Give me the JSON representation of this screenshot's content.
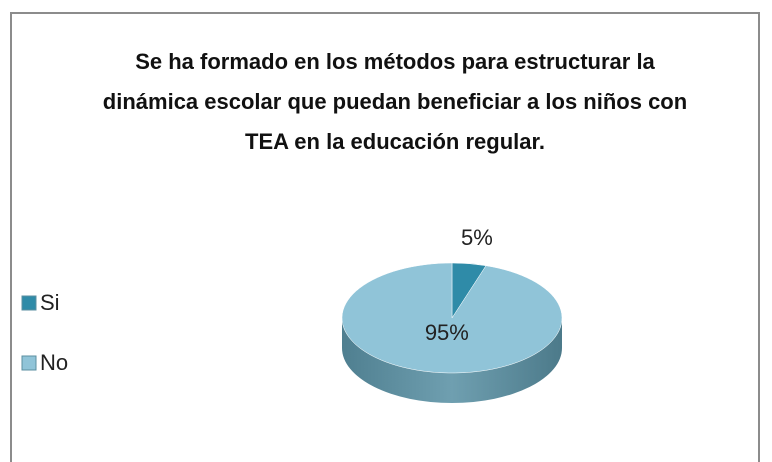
{
  "chart_data": {
    "type": "pie",
    "title": "Se ha formado en los métodos para estructurar la dinámica escolar que puedan beneficiar a los niños con TEA en la educación regular.",
    "categories": [
      "Si",
      "No"
    ],
    "values": [
      5,
      95
    ],
    "value_labels": [
      "5%",
      "95%"
    ],
    "colors": [
      "#2f8ba8",
      "#90c4d8"
    ],
    "legend": "left"
  }
}
